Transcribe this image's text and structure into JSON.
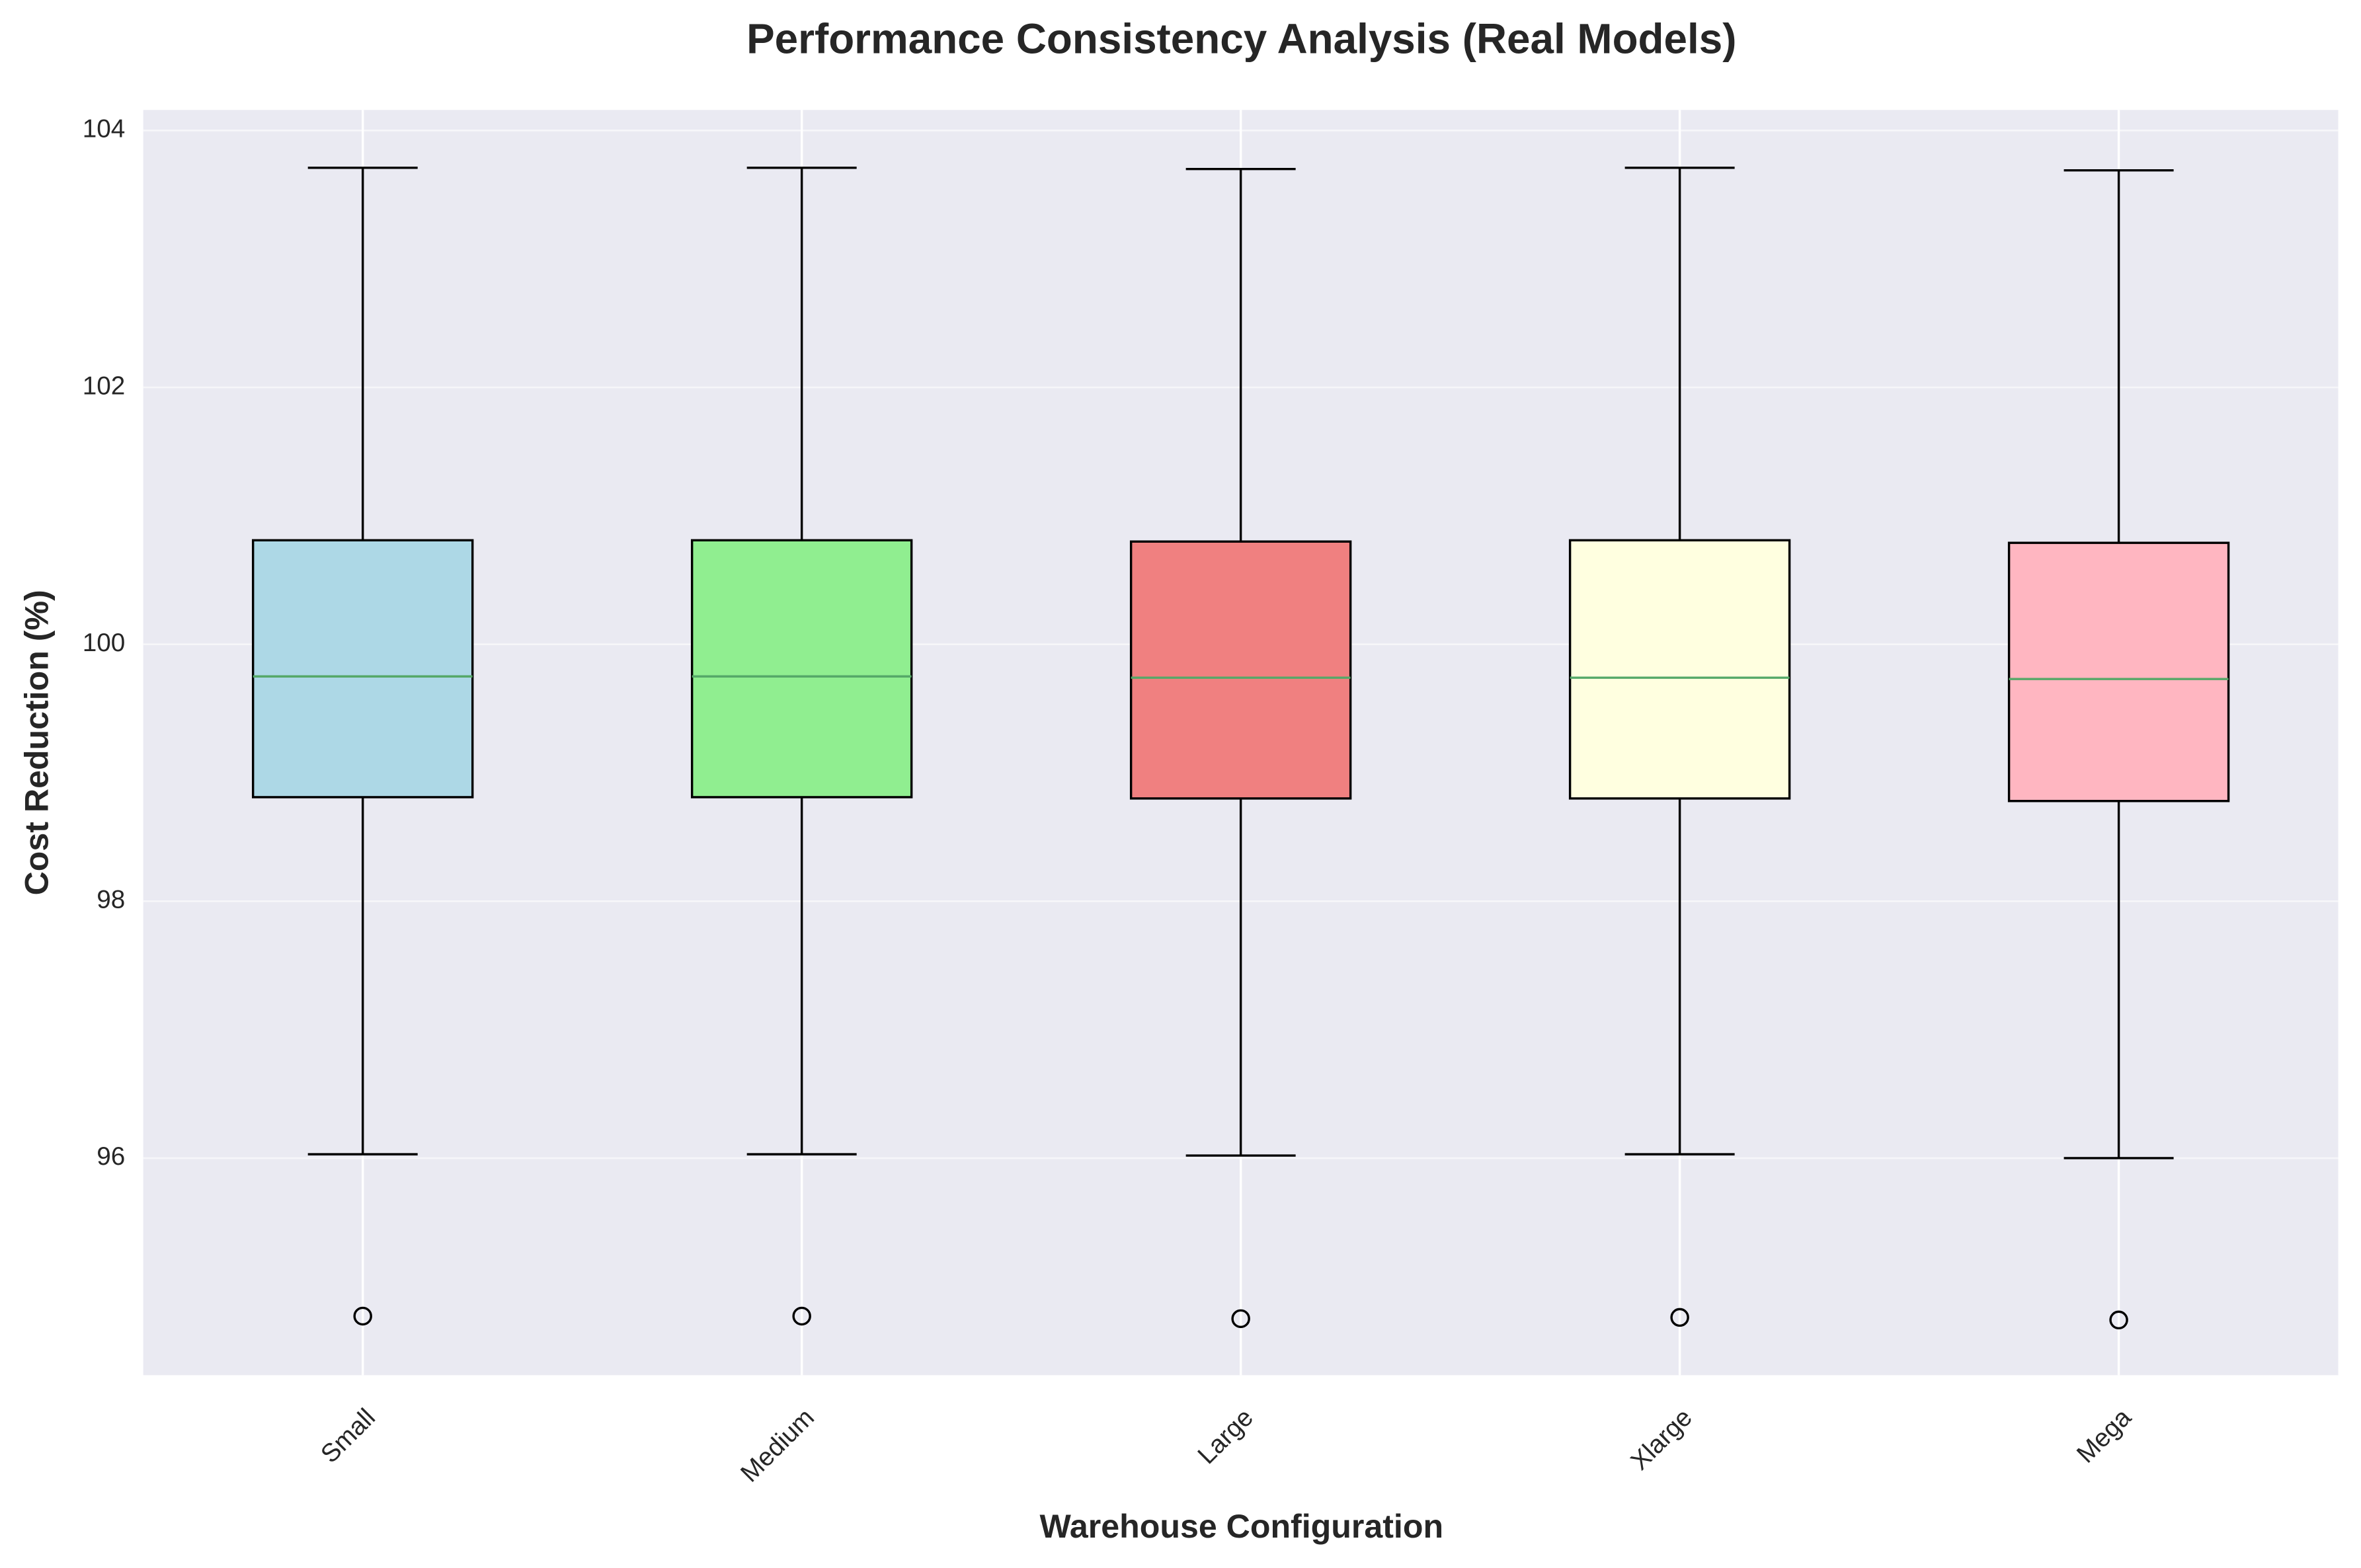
{
  "chart_data": {
    "type": "box",
    "title": "Performance Consistency Analysis (Real Models)",
    "xlabel": "Warehouse Configuration",
    "ylabel": "Cost Reduction (%)",
    "categories": [
      "Small",
      "Medium",
      "Large",
      "Xlarge",
      "Mega"
    ],
    "colors": [
      "#add8e6",
      "#90ee90",
      "#f08080",
      "#ffffe0",
      "#ffb6c1"
    ],
    "median_color": "#55a868",
    "boxes": [
      {
        "min": 96.03,
        "q1": 98.81,
        "median": 99.75,
        "q3": 100.81,
        "max": 103.71,
        "outliers": [
          94.77
        ]
      },
      {
        "min": 96.03,
        "q1": 98.81,
        "median": 99.75,
        "q3": 100.81,
        "max": 103.71,
        "outliers": [
          94.77
        ]
      },
      {
        "min": 96.02,
        "q1": 98.8,
        "median": 99.74,
        "q3": 100.8,
        "max": 103.7,
        "outliers": [
          94.75
        ]
      },
      {
        "min": 96.03,
        "q1": 98.8,
        "median": 99.74,
        "q3": 100.81,
        "max": 103.71,
        "outliers": [
          94.76
        ]
      },
      {
        "min": 96.0,
        "q1": 98.78,
        "median": 99.73,
        "q3": 100.79,
        "max": 103.69,
        "outliers": [
          94.74
        ]
      }
    ],
    "ylim": [
      94.31,
      104.16
    ],
    "yticks": [
      96,
      98,
      100,
      102,
      104
    ],
    "grid": true
  }
}
